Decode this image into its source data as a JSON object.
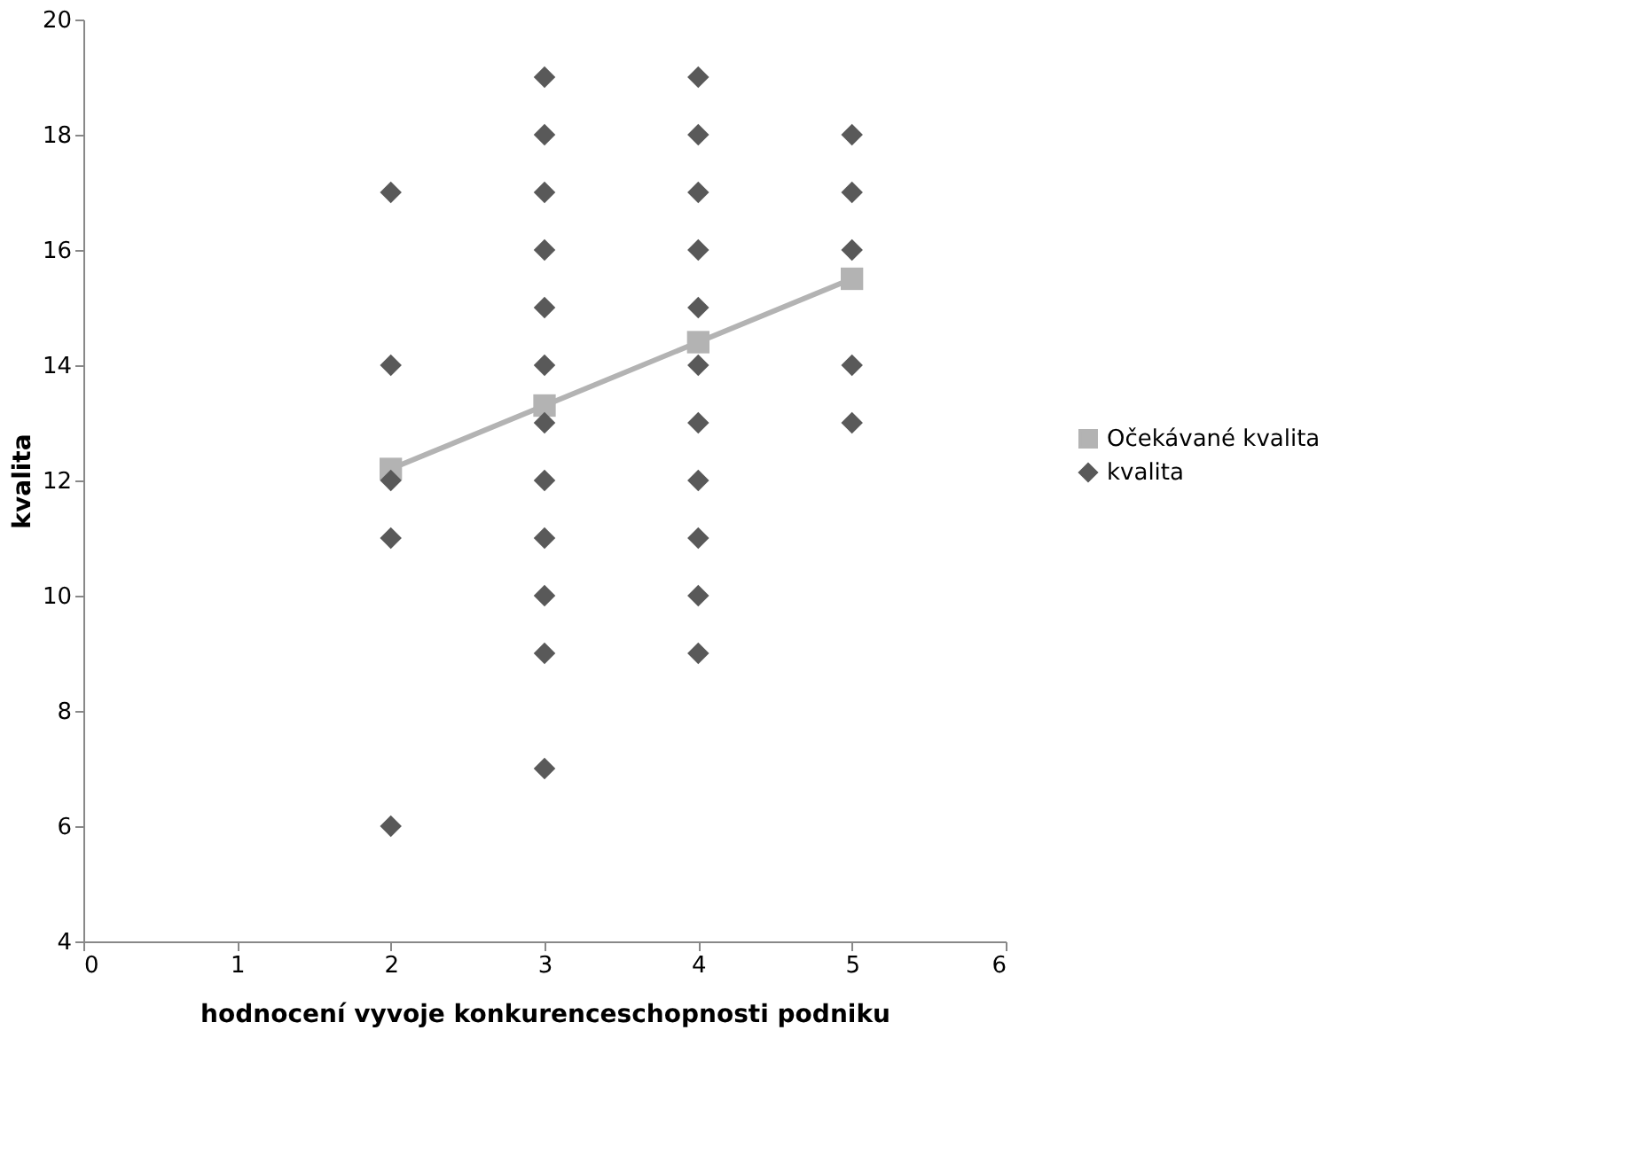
{
  "chart_data": {
    "type": "scatter",
    "xlabel": "hodnocení vyvoje konkurenceschopnosti podniku",
    "ylabel": "kvalita",
    "xlim": [
      0,
      6
    ],
    "xticks": [
      0,
      1,
      2,
      3,
      4,
      5,
      6
    ],
    "ylim": [
      4,
      20
    ],
    "yticks": [
      4,
      6,
      8,
      10,
      12,
      14,
      16,
      18,
      20
    ],
    "grid": false,
    "legend": "right",
    "series": [
      {
        "name": "Očekávané kvalita",
        "type": "line",
        "marker": "square",
        "line_style": "solid",
        "color": "#b3b3b3",
        "x": [
          2,
          3,
          4,
          5
        ],
        "values": [
          12.2,
          13.3,
          14.4,
          15.5
        ]
      },
      {
        "name": "kvalita",
        "marker": "diamond",
        "color": "#595959",
        "x": [
          2,
          2,
          2,
          2,
          2,
          3,
          3,
          3,
          3,
          3,
          3,
          3,
          3,
          3,
          3,
          3,
          3,
          4,
          4,
          4,
          4,
          4,
          4,
          4,
          4,
          4,
          4,
          4,
          5,
          5,
          5,
          5,
          5
        ],
        "values": [
          17,
          14,
          12,
          11,
          6,
          19,
          18,
          17,
          16,
          15,
          14,
          13,
          12,
          11,
          10,
          9,
          7,
          19,
          18,
          17,
          16,
          15,
          14,
          13,
          12,
          11,
          10,
          9,
          18,
          17,
          16,
          14,
          13
        ]
      }
    ]
  }
}
